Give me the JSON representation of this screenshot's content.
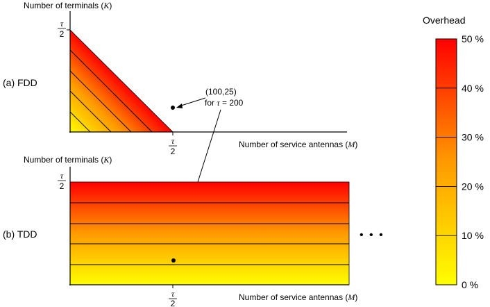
{
  "panel_a": {
    "label": "(a) FDD",
    "y_axis_label": "Number of terminals",
    "y_axis_symbol": "K",
    "x_axis_label": "Number of service antennas",
    "x_axis_symbol": "M",
    "y_tick": {
      "numerator": "τ",
      "denominator": "2"
    },
    "x_tick": {
      "numerator": "τ",
      "denominator": "2"
    },
    "example_point": {
      "coords": "(100,25)",
      "condition_prefix": "for ",
      "condition_symbol": "τ",
      "condition_suffix": " = 200",
      "M": 100,
      "K": 25,
      "tau": 200
    }
  },
  "panel_b": {
    "label": "(b) TDD",
    "y_axis_label": "Number of terminals",
    "y_axis_symbol": "K",
    "x_axis_label": "Number of service antennas",
    "x_axis_symbol": "M",
    "y_tick": {
      "numerator": "τ",
      "denominator": "2"
    },
    "x_tick": {
      "numerator": "τ",
      "denominator": "2"
    },
    "ellipsis": "• • •"
  },
  "colorbar": {
    "title": "Overhead",
    "ticks": [
      "0 %",
      "10 %",
      "20 %",
      "30 %",
      "40 %",
      "50 %"
    ],
    "values": [
      0,
      10,
      20,
      30,
      40,
      50
    ],
    "color_low": "#ffff00",
    "color_high": "#ff0000"
  }
}
